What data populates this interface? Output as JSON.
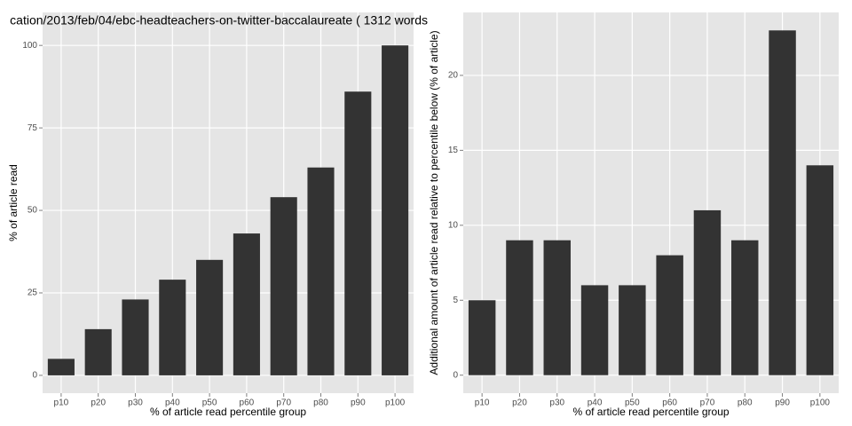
{
  "chart_data": [
    {
      "type": "bar",
      "title": "cation/2013/feb/04/ebc-headteachers-on-twitter-baccalaureate ( 1312 words",
      "categories": [
        "p10",
        "p20",
        "p30",
        "p40",
        "p50",
        "p60",
        "p70",
        "p80",
        "p90",
        "p100"
      ],
      "values": [
        5,
        14,
        23,
        29,
        35,
        43,
        54,
        63,
        86,
        100
      ],
      "color": "#333333",
      "xlabel": "% of article read percentile group",
      "ylabel": "% of article read",
      "ylim": [
        -5.4,
        110
      ],
      "yticks": [
        0,
        25,
        50,
        75,
        100
      ],
      "grid": true
    },
    {
      "type": "bar",
      "categories": [
        "p10",
        "p20",
        "p30",
        "p40",
        "p50",
        "p60",
        "p70",
        "p80",
        "p90",
        "p100"
      ],
      "values": [
        5,
        9,
        9,
        6,
        6,
        8,
        11,
        9,
        23,
        14
      ],
      "color": "#333333",
      "xlabel": "% of article read percentile group",
      "ylabel": "Additional amount of article read relative to percentile below (% of article)",
      "ylim": [
        -1.2,
        24.2
      ],
      "yticks": [
        0,
        5,
        10,
        15,
        20
      ],
      "grid": true
    }
  ]
}
